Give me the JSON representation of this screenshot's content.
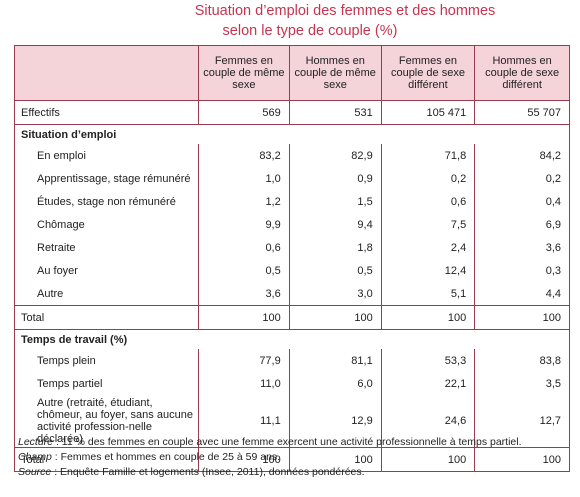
{
  "title": [
    "Situation d’emploi des femmes et des hommes",
    "selon le type de couple (%)"
  ],
  "table": {
    "columns": [
      "Femmes en couple de même sexe",
      "Hommes en couple de même sexe",
      "Femmes en couple de sexe différent",
      "Hommes en couple de sexe différent"
    ],
    "rows": [
      {
        "label": "Effectifs",
        "values": [
          "569",
          "531",
          "105 471",
          "55 707"
        ]
      },
      {
        "section": "Situation d’emploi"
      },
      {
        "label": "En emploi",
        "values": [
          "83,2",
          "82,9",
          "71,8",
          "84,2"
        ]
      },
      {
        "label": "Apprentissage, stage rémunéré",
        "values": [
          "1,0",
          "0,9",
          "0,2",
          "0,2"
        ]
      },
      {
        "label": "Études, stage non rémunéré",
        "values": [
          "1,2",
          "1,5",
          "0,6",
          "0,4"
        ]
      },
      {
        "label": "Chômage",
        "values": [
          "9,9",
          "9,4",
          "7,5",
          "6,9"
        ]
      },
      {
        "label": "Retraite",
        "values": [
          "0,6",
          "1,8",
          "2,4",
          "3,6"
        ]
      },
      {
        "label": "Au foyer",
        "values": [
          "0,5",
          "0,5",
          "12,4",
          "0,3"
        ]
      },
      {
        "label": "Autre",
        "values": [
          "3,6",
          "3,0",
          "5,1",
          "4,4"
        ]
      },
      {
        "label": "Total",
        "values": [
          "100",
          "100",
          "100",
          "100"
        ]
      },
      {
        "section": "Temps de travail (%)"
      },
      {
        "label": "Temps plein",
        "values": [
          "77,9",
          "81,1",
          "53,3",
          "83,8"
        ]
      },
      {
        "label": "Temps partiel",
        "values": [
          "11,0",
          "6,0",
          "22,1",
          "3,5"
        ]
      },
      {
        "label": "Autre (retraité, étudiant, chômeur, au foyer, sans aucune activité profession-nelle déclarée)",
        "values": [
          "11,1",
          "12,9",
          "24,6",
          "12,7"
        ]
      },
      {
        "label": "Total",
        "values": [
          "100",
          "100",
          "100",
          "100"
        ]
      }
    ]
  },
  "notes": [
    {
      "label": "Lecture",
      "text": ": 11 % des femmes en couple avec une femme exercent une activité professionnelle à temps partiel."
    },
    {
      "label": "Champ",
      "text": ": Femmes et hommes en couple de 25 à 59 ans."
    },
    {
      "label": "Source",
      "text": ": Enquête Famille et logements (Insee, 2011), données pondérées."
    }
  ]
}
